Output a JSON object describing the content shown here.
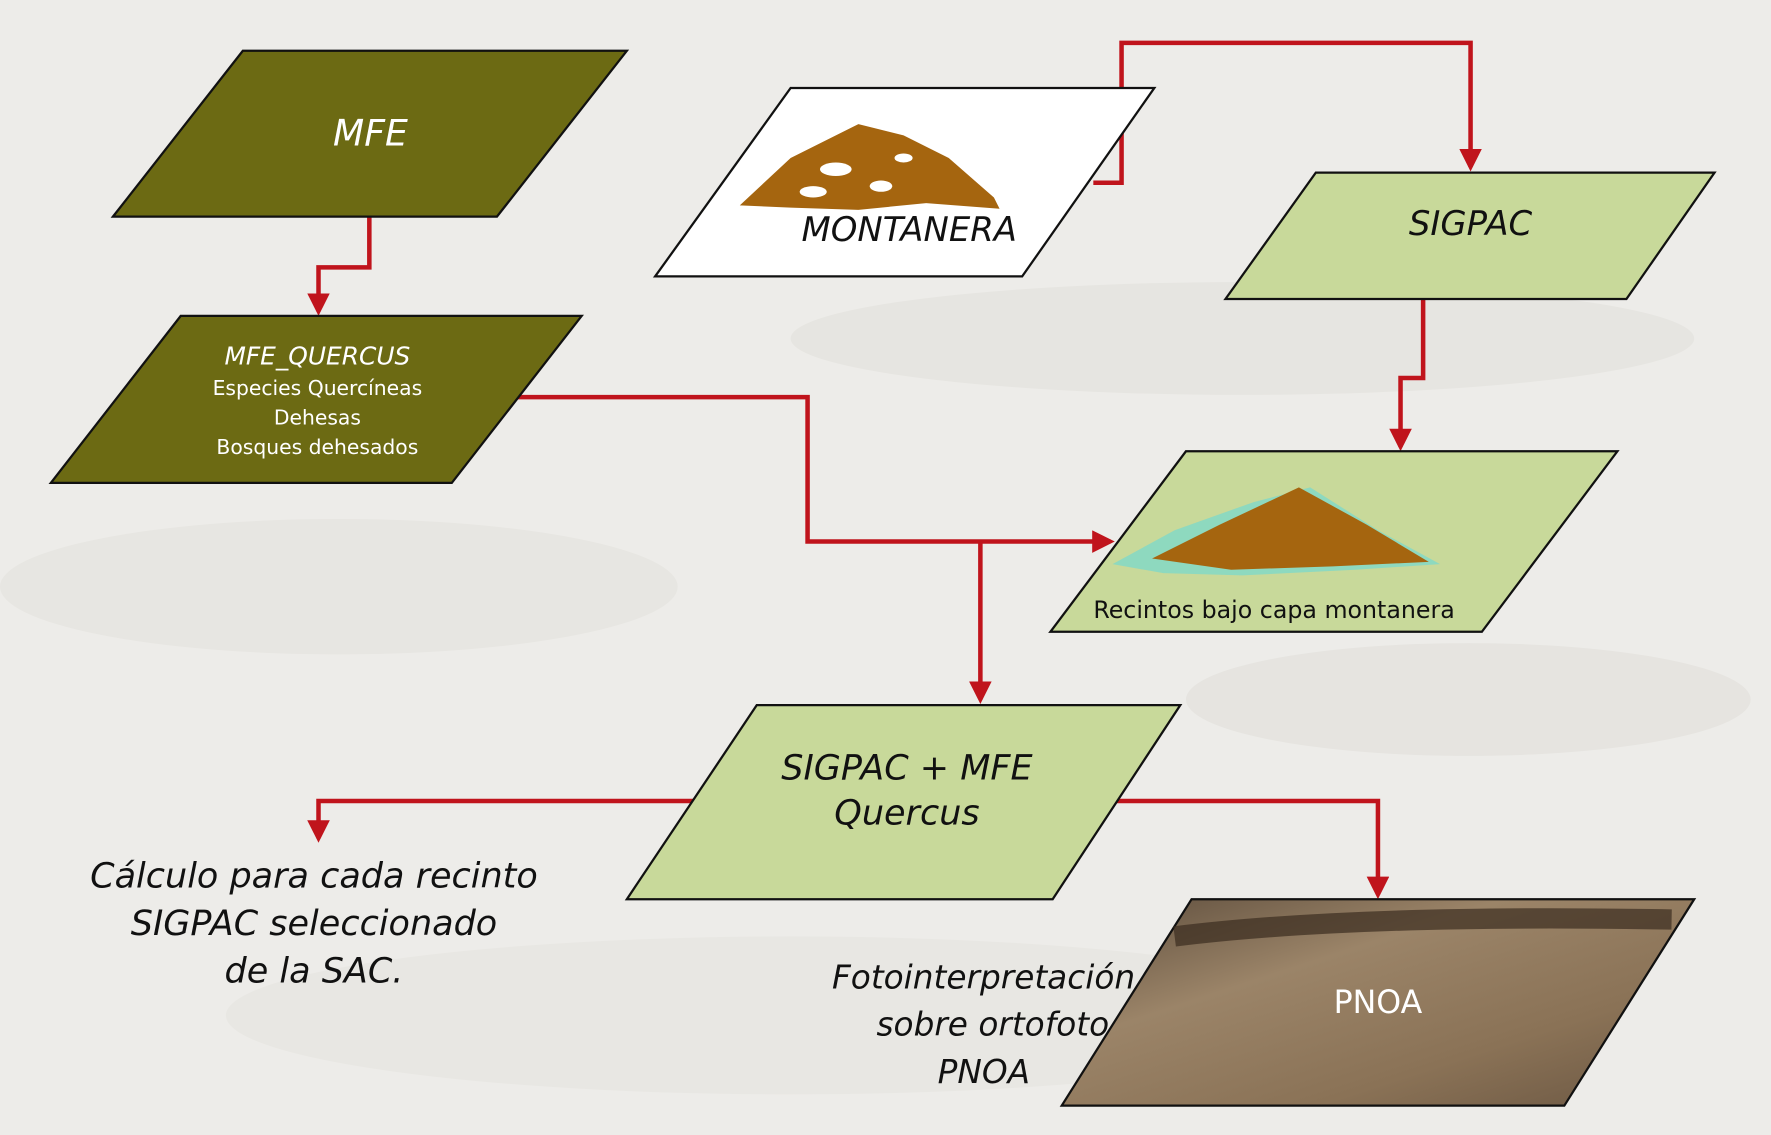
{
  "nodes": [
    {
      "label": "MFE"
    },
    {
      "label": "MFE_QUERCUS",
      "lines": [
        "Especies Quercíneas",
        "Dehesas",
        "Bosques dehesados"
      ]
    },
    {
      "label": "MONTANERA"
    },
    {
      "label": "SIGPAC"
    },
    {
      "label": "Recintos bajo capa montanera"
    },
    {
      "lines": [
        "SIGPAC + MFE",
        "Quercus"
      ]
    },
    {
      "label": "PNOA"
    }
  ],
  "notes": [
    {
      "lines": [
        "Cálculo para cada recinto",
        "SIGPAC seleccionado",
        "de la SAC."
      ]
    },
    {
      "lines": [
        "Fotointerpretación",
        "sobre ortofoto",
        "PNOA"
      ]
    }
  ]
}
